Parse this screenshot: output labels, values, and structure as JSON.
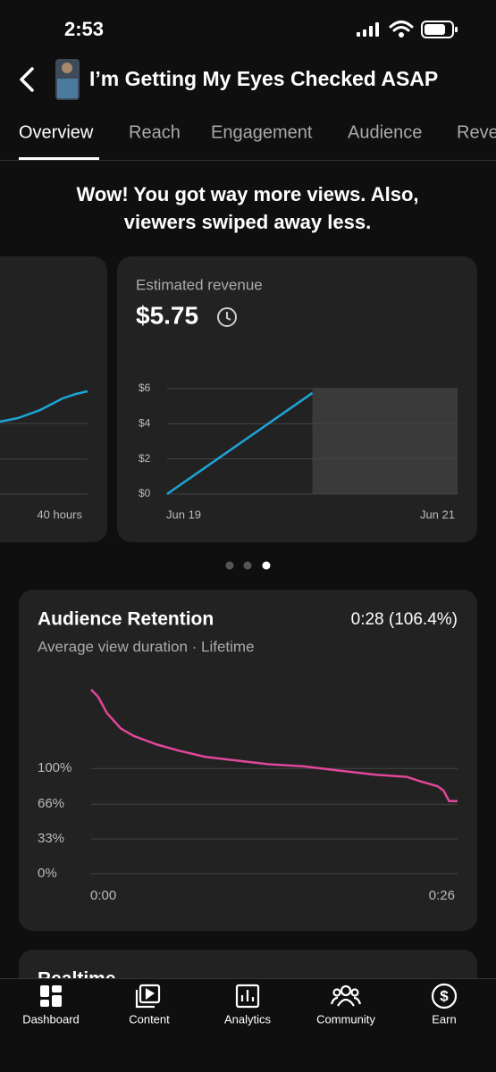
{
  "status_bar": {
    "time": "2:53"
  },
  "header": {
    "title": "I’m Getting My Eyes Checked ASAP"
  },
  "tabs": [
    "Overview",
    "Reach",
    "Engagement",
    "Audience",
    "Revenue"
  ],
  "headline": [
    "Wow! You got way more views. Also,",
    "viewers swiped away less."
  ],
  "partial_card": {
    "x_label": "40 hours"
  },
  "chart_data": [
    {
      "type": "line",
      "title": "Estimated revenue",
      "headline_value": "$5.75",
      "x": [
        0,
        1
      ],
      "xlim": [
        0,
        2
      ],
      "xticks": [
        {
          "value": 0,
          "label": "Jun 19"
        },
        {
          "value": 2,
          "label": "Jun 21"
        }
      ],
      "series": [
        {
          "color": "#1ea5d8",
          "values": [
            0,
            5.75
          ]
        }
      ],
      "ylim": [
        0,
        6
      ],
      "yticks": [
        {
          "value": 0,
          "label": "$0"
        },
        {
          "value": 2,
          "label": "$2"
        },
        {
          "value": 4,
          "label": "$4"
        },
        {
          "value": 6,
          "label": "$6"
        }
      ],
      "grid": true
    },
    {
      "type": "line",
      "title": "Audience Retention",
      "annotation": "0:28 (106.4%)",
      "subtitle": "Average view duration · Lifetime",
      "x": [
        0,
        0.5,
        1.1,
        2.1,
        3.0,
        4.6,
        6.2,
        8.1,
        10.0,
        12.6,
        15.1,
        17.6,
        20.2,
        22.4,
        23.3,
        24.6,
        25.0,
        25.4,
        26
      ],
      "xlim": [
        0,
        26
      ],
      "xticks": [
        {
          "value": 0,
          "label": "0:00"
        },
        {
          "value": 26,
          "label": "0:26"
        }
      ],
      "series": [
        {
          "color": "#e0479b",
          "values": [
            175,
            168,
            153,
            138,
            131,
            123,
            117,
            111,
            108,
            104,
            102,
            98,
            94,
            92,
            88,
            83,
            79,
            69,
            69
          ]
        }
      ],
      "ylim": [
        0,
        180
      ],
      "yticks": [
        {
          "value": 0,
          "label": "0%"
        },
        {
          "value": 33,
          "label": "33%"
        },
        {
          "value": 66,
          "label": "66%"
        },
        {
          "value": 100,
          "label": "100%"
        }
      ],
      "grid": true
    }
  ],
  "realtime_card": {
    "title": "Realtime"
  },
  "nav": [
    "Dashboard",
    "Content",
    "Analytics",
    "Community",
    "Earn"
  ]
}
